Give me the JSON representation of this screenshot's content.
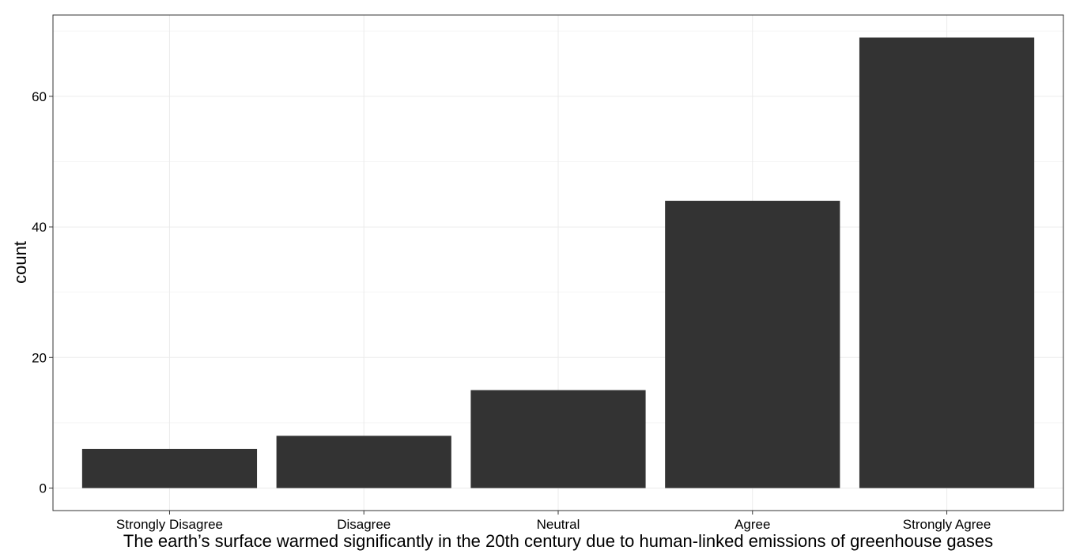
{
  "chart_data": {
    "type": "bar",
    "title": "",
    "xlabel": "The earth’s surface warmed significantly in the 20th century due to human-linked emissions of greenhouse gases",
    "ylabel": "count",
    "categories": [
      "Strongly Disagree",
      "Disagree",
      "Neutral",
      "Agree",
      "Strongly Agree"
    ],
    "values": [
      6,
      8,
      15,
      44,
      69
    ],
    "ylim": [
      -3.45,
      72.45
    ],
    "yticks": [
      0,
      20,
      40,
      60
    ],
    "grid": true,
    "legend": "none",
    "colors": {
      "bar": "#333333",
      "grid_major": "#ebebeb",
      "grid_minor": "#f5f5f5",
      "panel_border": "#333333",
      "background": "#ffffff"
    }
  }
}
